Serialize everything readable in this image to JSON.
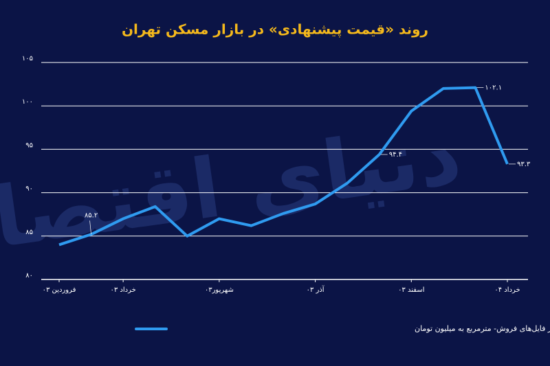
{
  "chart_data": {
    "type": "line",
    "title": "روند «قیمت پیشنهادی» در بازار مسکن تهران",
    "watermark": "دنیای اقتصاد",
    "categories": [
      "فروردین ۰۳",
      null,
      "خرداد ۰۳",
      null,
      null,
      "شهریور۰۳",
      null,
      null,
      "آذر ۰۳",
      null,
      null,
      "اسفند ۰۳",
      null,
      null,
      "خرداد ۰۴"
    ],
    "series": [
      {
        "name": "میانگین «قیمت پیشنهادی» آپارتمان در فایل‌های فروش- مترمربع به میلیون تومان",
        "color": "#2f9bf0",
        "values": [
          84.0,
          85.2,
          87.0,
          88.4,
          85.0,
          87.0,
          86.2,
          87.6,
          88.7,
          91.1,
          94.4,
          99.4,
          102.0,
          102.1,
          93.3
        ],
        "value_labels": [
          null,
          "۸۵.۲",
          null,
          null,
          null,
          null,
          null,
          null,
          null,
          null,
          "۹۴.۴",
          null,
          null,
          "۱۰۲.۱",
          "۹۳.۳"
        ]
      }
    ],
    "ylim": [
      80,
      105
    ],
    "yticks": [
      {
        "value": 80,
        "label": "۸۰"
      },
      {
        "value": 85,
        "label": "۸۵"
      },
      {
        "value": 90,
        "label": "۹۰"
      },
      {
        "value": 95,
        "label": "۹۵"
      },
      {
        "value": 100,
        "label": "۱۰۰"
      },
      {
        "value": 105,
        "label": "۱۰۵"
      }
    ],
    "grid": true
  }
}
